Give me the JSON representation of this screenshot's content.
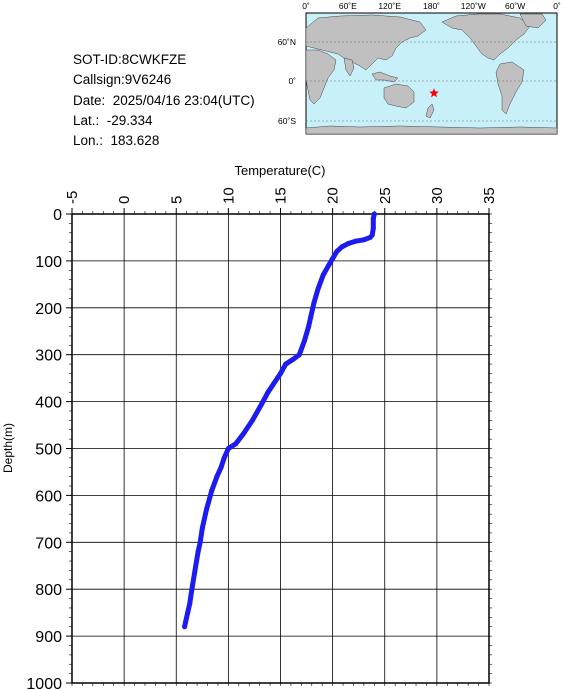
{
  "info": {
    "sot_id": "SOT-ID:8CWKFZE",
    "callsign": "Callsign:9V6246",
    "date": "Date:  2025/04/16 23:04(UTC)",
    "lat": "Lat.:  -29.334",
    "lon": "Lon.:  183.628"
  },
  "map": {
    "top_labels": [
      "0˚",
      "60˚E",
      "120˚E",
      "180˚",
      "120˚W",
      "60˚W",
      "0˚"
    ],
    "left_labels": [
      "60˚N",
      "0˚",
      "60˚S"
    ],
    "marker_lat": -29.334,
    "marker_lon": 183.628,
    "ocean_color": "#c8f0f8",
    "land_color": "#c0c0c0",
    "marker_color": "#ff0000",
    "marker_icon": "star-icon"
  },
  "chart_data": {
    "type": "line",
    "xlabel": "Temperature(C)",
    "ylabel": "Depth(m)",
    "xlim": [
      -5,
      35
    ],
    "ylim": [
      1000,
      0
    ],
    "x_ticks": [
      "-5",
      "0",
      "5",
      "10",
      "15",
      "20",
      "25",
      "30",
      "35"
    ],
    "y_ticks": [
      "0",
      "100",
      "200",
      "300",
      "400",
      "500",
      "600",
      "700",
      "800",
      "900",
      "1000"
    ],
    "grid": true,
    "line_color": "#1c1cf0",
    "series": [
      {
        "x": [
          24.0,
          23.9,
          23.9,
          23.8,
          23.6,
          23.0,
          22.2,
          21.5,
          20.9,
          20.4,
          20.0,
          19.6,
          19.1,
          18.6,
          18.2,
          17.9,
          17.7,
          17.3,
          16.8,
          16.2,
          15.5,
          15.0,
          14.7,
          13.8,
          13.2,
          12.3,
          11.4,
          10.7,
          10.0,
          9.6,
          9.3,
          8.9,
          8.4,
          7.9,
          7.5,
          7.3,
          7.1,
          6.8,
          6.5,
          6.3,
          6.1,
          5.9,
          5.8
        ],
        "y": [
          0,
          10,
          30,
          45,
          50,
          55,
          58,
          63,
          70,
          80,
          95,
          110,
          130,
          160,
          190,
          220,
          240,
          270,
          300,
          310,
          320,
          340,
          350,
          380,
          405,
          440,
          470,
          490,
          500,
          520,
          540,
          560,
          590,
          630,
          670,
          700,
          720,
          760,
          800,
          830,
          850,
          870,
          880
        ]
      }
    ]
  }
}
